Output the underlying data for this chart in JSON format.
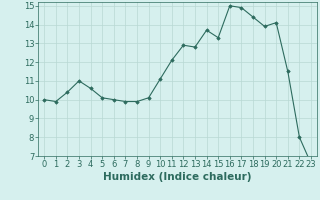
{
  "x": [
    0,
    1,
    2,
    3,
    4,
    5,
    6,
    7,
    8,
    9,
    10,
    11,
    12,
    13,
    14,
    15,
    16,
    17,
    18,
    19,
    20,
    21,
    22,
    23
  ],
  "y": [
    10.0,
    9.9,
    10.4,
    11.0,
    10.6,
    10.1,
    10.0,
    9.9,
    9.9,
    10.1,
    11.1,
    12.1,
    12.9,
    12.8,
    13.7,
    13.3,
    15.0,
    14.9,
    14.4,
    13.9,
    14.1,
    11.5,
    8.0,
    6.6
  ],
  "line_color": "#2d6b5e",
  "marker": "D",
  "marker_size": 1.8,
  "bg_color": "#d6f0ee",
  "grid_color": "#b8d8d4",
  "xlabel": "Humidex (Indice chaleur)",
  "ylim": [
    7,
    15.2
  ],
  "xlim": [
    -0.5,
    23.5
  ],
  "yticks": [
    7,
    8,
    9,
    10,
    11,
    12,
    13,
    14,
    15
  ],
  "xticks": [
    0,
    1,
    2,
    3,
    4,
    5,
    6,
    7,
    8,
    9,
    10,
    11,
    12,
    13,
    14,
    15,
    16,
    17,
    18,
    19,
    20,
    21,
    22,
    23
  ],
  "tick_color": "#2d6b5e",
  "label_color": "#2d6b5e",
  "xlabel_fontsize": 7.5,
  "tick_fontsize": 6.0
}
